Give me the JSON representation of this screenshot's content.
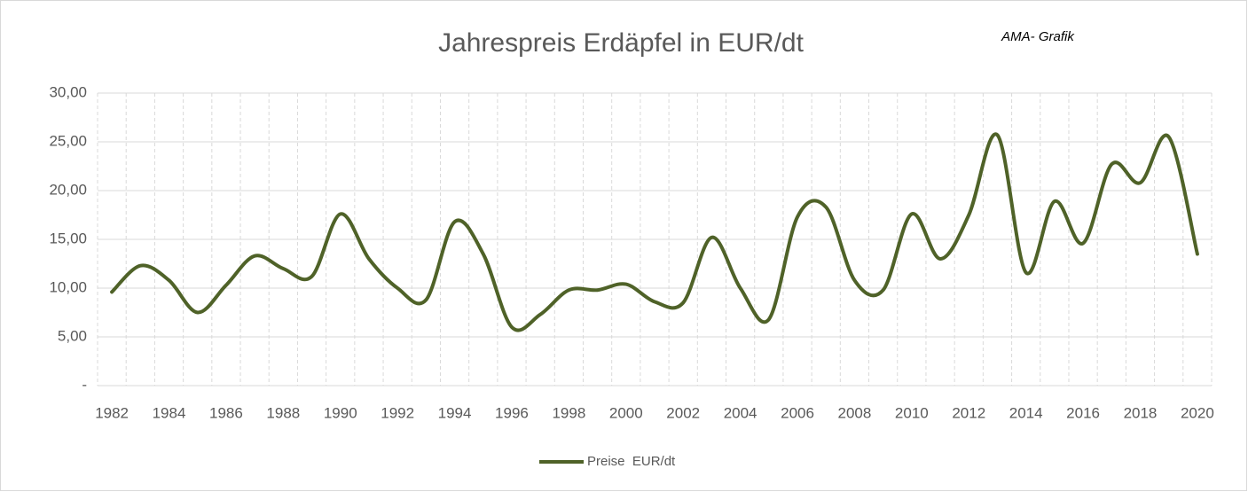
{
  "chart_data": {
    "type": "line",
    "title": "Jahrespreis Erdäpfel in EUR/dt",
    "annotation": "AMA- Grafik",
    "categories": [
      "1982",
      null,
      "1984",
      null,
      "1986",
      null,
      "1988",
      null,
      "1990",
      null,
      "1992",
      null,
      "1994",
      null,
      "1996",
      null,
      "1998",
      null,
      "2000",
      null,
      "2002",
      null,
      "2004",
      null,
      "2006",
      null,
      "2008",
      null,
      "2010",
      null,
      "2012",
      null,
      "2014",
      null,
      "2016",
      null,
      "2018",
      null,
      "2020"
    ],
    "series": [
      {
        "name": "Preise  EUR/dt",
        "color": "#4f6228",
        "values": [
          9.6,
          12.3,
          10.8,
          7.5,
          10.3,
          13.3,
          12.0,
          11.2,
          17.6,
          13.0,
          10.0,
          8.8,
          16.8,
          13.5,
          6.0,
          7.3,
          9.8,
          9.8,
          10.4,
          8.6,
          8.5,
          15.2,
          10.0,
          6.8,
          17.3,
          18.3,
          10.8,
          9.8,
          17.6,
          13.0,
          17.5,
          25.7,
          11.6,
          18.9,
          14.6,
          22.7,
          20.8,
          25.5,
          13.5
        ]
      }
    ],
    "ylim": [
      0,
      30
    ],
    "yticks": [
      {
        "value": 0,
        "label": "-"
      },
      {
        "value": 5,
        "label": "5,00"
      },
      {
        "value": 10,
        "label": "10,00"
      },
      {
        "value": 15,
        "label": "15,00"
      },
      {
        "value": 20,
        "label": "20,00"
      },
      {
        "value": 25,
        "label": "25,00"
      },
      {
        "value": 30,
        "label": "30,00"
      }
    ],
    "grid": true,
    "smooth": true,
    "legend": "bottom"
  }
}
